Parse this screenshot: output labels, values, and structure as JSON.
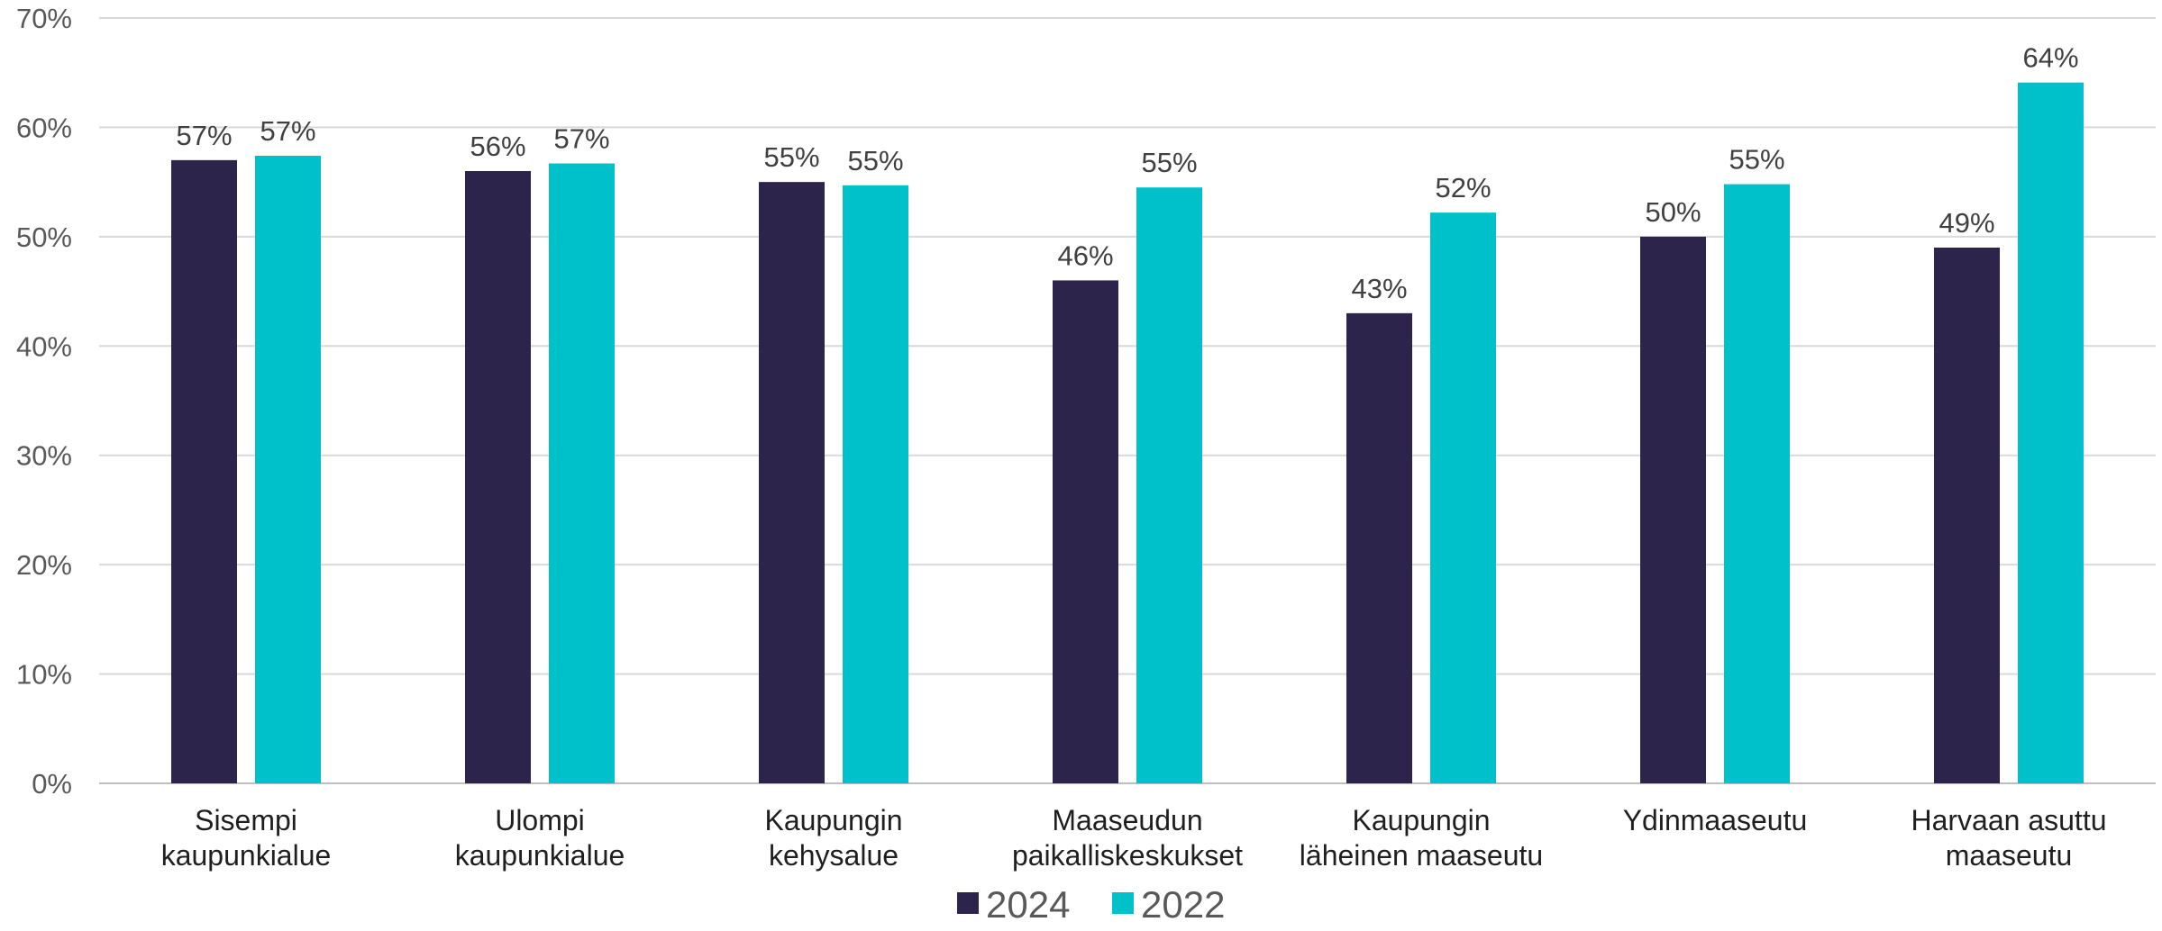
{
  "chart_data": {
    "type": "bar",
    "title": "",
    "xlabel": "",
    "ylabel": "",
    "ylim": [
      0,
      70
    ],
    "y_ticks": [
      0,
      10,
      20,
      30,
      40,
      50,
      60,
      70
    ],
    "y_tick_format": "{v}%",
    "grid": true,
    "legend_position": "bottom",
    "categories": [
      [
        "Sisempi",
        "kaupunkialue"
      ],
      [
        "Ulompi",
        "kaupunkialue"
      ],
      [
        "Kaupungin",
        "kehysalue"
      ],
      [
        "Maaseudun",
        "paikalliskeskukset"
      ],
      [
        "Kaupungin",
        "läheinen maaseutu"
      ],
      [
        "Ydinmaaseutu"
      ],
      [
        "Harvaan asuttu",
        "maaseutu"
      ]
    ],
    "series": [
      {
        "name": "2024",
        "color": "#2c244b",
        "values": [
          57,
          56,
          55,
          46,
          43,
          50,
          49
        ],
        "labels": [
          "57%",
          "56%",
          "55%",
          "46%",
          "43%",
          "50%",
          "49%"
        ]
      },
      {
        "name": "2022",
        "color": "#00c0c9",
        "values": [
          57.4,
          56.7,
          54.7,
          54.5,
          52.2,
          54.8,
          64.1
        ],
        "labels": [
          "57%",
          "57%",
          "55%",
          "55%",
          "52%",
          "55%",
          "64%"
        ]
      }
    ]
  }
}
